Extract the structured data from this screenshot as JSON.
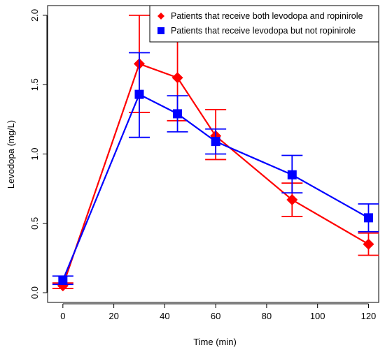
{
  "chart_data": {
    "type": "line",
    "title": "",
    "xlabel": "Time (min)",
    "ylabel": "Levodopa (mg/L)",
    "xlim": [
      -6,
      124
    ],
    "ylim": [
      -0.07,
      2.07
    ],
    "xticks": [
      0,
      20,
      40,
      60,
      80,
      100,
      120
    ],
    "yticks": [
      0.0,
      0.5,
      1.0,
      1.5,
      2.0
    ],
    "ytick_labels": [
      "0.0",
      "0.5",
      "1.0",
      "1.5",
      "2.0"
    ],
    "grid": false,
    "legend_position": "top-right",
    "series": [
      {
        "name": "Patients that receive both levodopa and ropinirole",
        "color": "#ff0000",
        "marker": "diamond",
        "x": [
          0,
          30,
          45,
          60,
          90,
          120
        ],
        "y": [
          0.05,
          1.65,
          1.55,
          1.13,
          0.67,
          0.35
        ],
        "y_lower": [
          0.03,
          1.3,
          1.24,
          0.96,
          0.55,
          0.27
        ],
        "y_upper": [
          0.07,
          2.0,
          1.85,
          1.32,
          0.79,
          0.43
        ]
      },
      {
        "name": "Patients that receive levodopa but not ropinirole",
        "color": "#0000ff",
        "marker": "square",
        "x": [
          0,
          30,
          45,
          60,
          90,
          120
        ],
        "y": [
          0.09,
          1.43,
          1.29,
          1.09,
          0.85,
          0.54
        ],
        "y_lower": [
          0.06,
          1.12,
          1.16,
          1.0,
          0.72,
          0.44
        ],
        "y_upper": [
          0.12,
          1.73,
          1.42,
          1.18,
          0.99,
          0.64
        ]
      }
    ]
  }
}
